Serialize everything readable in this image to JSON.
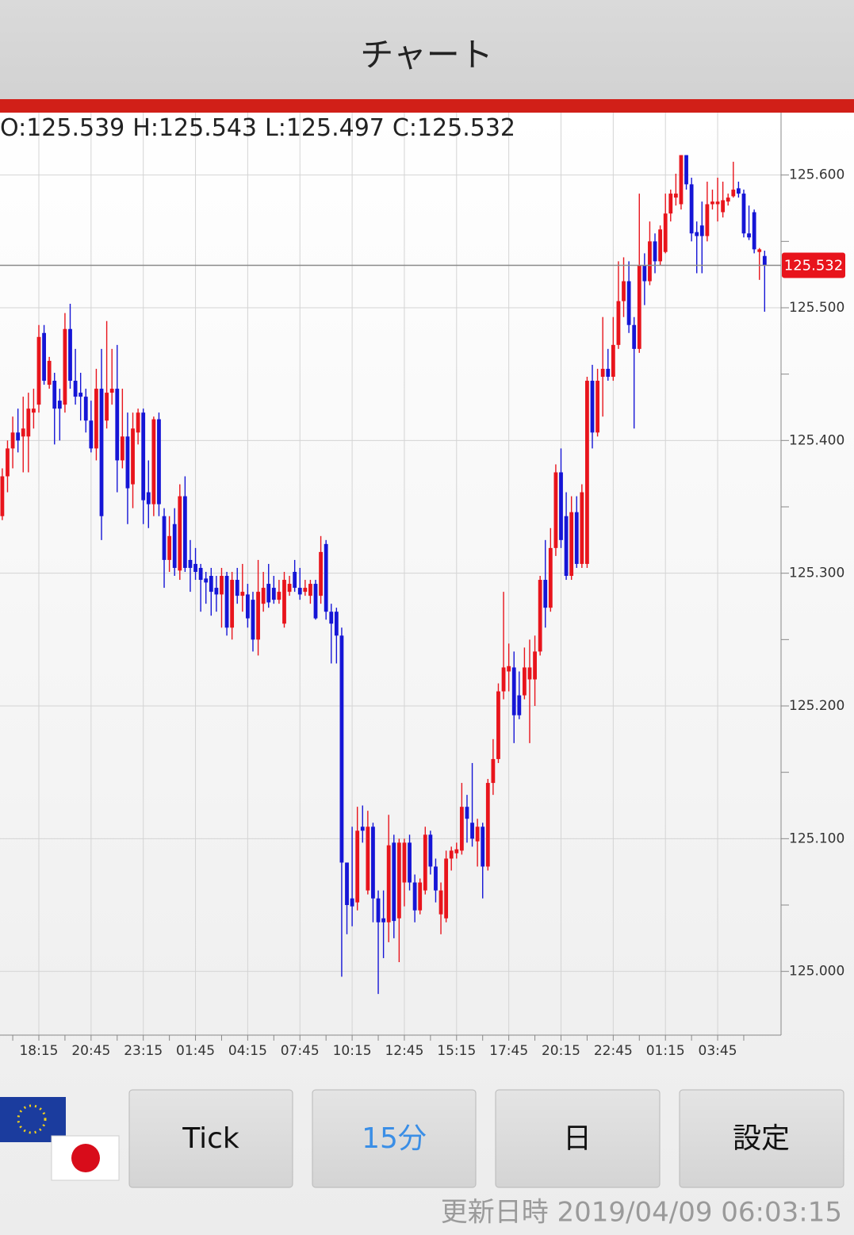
{
  "header": {
    "title": "チャート"
  },
  "chart_data": {
    "type": "candlestick",
    "categories": [
      null,
      null,
      null,
      null,
      null,
      null,
      null,
      "18:15",
      null,
      null,
      null,
      null,
      null,
      null,
      null,
      null,
      null,
      "20:45",
      null,
      null,
      null,
      null,
      null,
      null,
      null,
      null,
      null,
      "23:15",
      null,
      null,
      null,
      null,
      null,
      null,
      null,
      null,
      null,
      "01:45",
      null,
      null,
      null,
      null,
      null,
      null,
      null,
      null,
      null,
      "04:15",
      null,
      null,
      null,
      null,
      null,
      null,
      null,
      null,
      null,
      "07:45",
      null,
      null,
      null,
      null,
      null,
      null,
      null,
      null,
      null,
      "10:15",
      null,
      null,
      null,
      null,
      null,
      null,
      null,
      null,
      null,
      "12:45",
      null,
      null,
      null,
      null,
      null,
      null,
      null,
      null,
      null,
      "15:15",
      null,
      null,
      null,
      null,
      null,
      null,
      null,
      null,
      null,
      "17:45",
      null,
      null,
      null,
      null,
      null,
      null,
      null,
      null,
      null,
      "20:15",
      null,
      null,
      null,
      null,
      null,
      null,
      null,
      null,
      null,
      "22:45",
      null,
      null,
      null,
      null,
      null,
      null,
      null,
      null,
      null,
      "01:15",
      null,
      null,
      null,
      null,
      null,
      null,
      null,
      null,
      null,
      "03:45",
      null,
      null,
      null,
      null,
      null,
      null,
      null,
      null,
      null
    ],
    "open": [
      125.343,
      125.373,
      125.394,
      125.406,
      125.403,
      125.403,
      125.421,
      125.427,
      125.481,
      125.442,
      125.445,
      125.43,
      125.427,
      125.484,
      125.445,
      125.436,
      125.433,
      125.415,
      125.394,
      125.439,
      125.415,
      125.436,
      125.439,
      125.385,
      125.403,
      125.367,
      125.406,
      125.421,
      125.361,
      125.352,
      125.416,
      125.343,
      125.31,
      125.337,
      125.302,
      125.358,
      125.31,
      125.307,
      125.304,
      125.296,
      125.298,
      125.289,
      125.284,
      125.298,
      125.259,
      125.295,
      125.283,
      125.284,
      125.28,
      125.25,
      125.277,
      125.292,
      125.289,
      125.28,
      125.262,
      125.286,
      125.301,
      125.289,
      125.286,
      125.283,
      125.292,
      125.283,
      125.322,
      125.271,
      125.271,
      125.253,
      125.082,
      125.055,
      125.052,
      125.109,
      125.061,
      125.109,
      125.055,
      125.04,
      125.037,
      125.097,
      125.04,
      125.067,
      125.097,
      125.067,
      125.046,
      125.061,
      125.103,
      125.079,
      125.043,
      125.04,
      125.085,
      125.089,
      125.091,
      125.124,
      125.112,
      125.098,
      125.109,
      125.079,
      125.142,
      125.16,
      125.211,
      125.226,
      125.229,
      125.208,
      125.208,
      125.22,
      125.22,
      125.241,
      125.295,
      125.274,
      125.319,
      125.376,
      125.343,
      125.298,
      125.346,
      125.307,
      125.307,
      125.445,
      125.406,
      125.448,
      125.454,
      125.448,
      125.472,
      125.505,
      125.52,
      125.487,
      125.469,
      125.532,
      125.52,
      125.55,
      125.535,
      125.542,
      125.571,
      125.583,
      125.578,
      125.615,
      125.593,
      125.557,
      125.562,
      125.554,
      125.578,
      125.578,
      125.572,
      125.58,
      125.584,
      125.59,
      125.586,
      125.556,
      125.572,
      125.542,
      125.539
    ],
    "high": [
      125.379,
      125.4,
      125.418,
      125.424,
      125.433,
      125.436,
      125.439,
      125.487,
      125.487,
      125.463,
      125.451,
      125.439,
      125.496,
      125.503,
      125.469,
      125.451,
      125.439,
      125.43,
      125.454,
      125.469,
      125.49,
      125.469,
      125.472,
      125.439,
      125.421,
      125.421,
      125.424,
      125.424,
      125.385,
      125.418,
      125.421,
      125.349,
      125.343,
      125.349,
      125.367,
      125.373,
      125.325,
      125.319,
      125.307,
      125.301,
      125.304,
      125.298,
      125.304,
      125.301,
      125.301,
      125.304,
      125.307,
      125.292,
      125.286,
      125.31,
      125.301,
      125.307,
      125.298,
      125.295,
      125.301,
      125.298,
      125.31,
      125.304,
      125.295,
      125.295,
      125.295,
      125.328,
      125.325,
      125.277,
      125.274,
      125.259,
      125.082,
      125.109,
      125.124,
      125.125,
      125.121,
      125.112,
      125.061,
      125.061,
      125.118,
      125.103,
      125.1,
      125.1,
      125.103,
      125.073,
      125.07,
      125.109,
      125.106,
      125.085,
      125.067,
      125.091,
      125.094,
      125.097,
      125.142,
      125.133,
      125.157,
      125.115,
      125.112,
      125.145,
      125.175,
      125.217,
      125.286,
      125.247,
      125.241,
      125.226,
      125.244,
      125.25,
      125.253,
      125.298,
      125.325,
      125.334,
      125.382,
      125.394,
      125.361,
      125.358,
      125.358,
      125.367,
      125.448,
      125.457,
      125.454,
      125.493,
      125.469,
      125.493,
      125.535,
      125.538,
      125.535,
      125.493,
      125.586,
      125.541,
      125.565,
      125.556,
      125.562,
      125.586,
      125.589,
      125.601,
      125.615,
      125.615,
      125.598,
      125.565,
      125.58,
      125.595,
      125.589,
      125.598,
      125.595,
      125.586,
      125.61,
      125.595,
      125.589,
      125.577,
      125.574,
      125.545,
      125.543
    ],
    "low": [
      125.34,
      125.361,
      125.379,
      125.391,
      125.376,
      125.376,
      125.409,
      125.421,
      125.442,
      125.439,
      125.397,
      125.4,
      125.421,
      125.439,
      125.427,
      125.415,
      125.406,
      125.391,
      125.385,
      125.325,
      125.409,
      125.427,
      125.361,
      125.379,
      125.337,
      125.349,
      125.397,
      125.337,
      125.334,
      125.343,
      125.343,
      125.289,
      125.301,
      125.298,
      125.295,
      125.301,
      125.286,
      125.295,
      125.271,
      125.277,
      125.268,
      125.271,
      125.259,
      125.253,
      125.25,
      125.277,
      125.271,
      125.259,
      125.241,
      125.238,
      125.271,
      125.274,
      125.277,
      125.277,
      125.259,
      125.283,
      125.286,
      125.28,
      125.283,
      125.277,
      125.265,
      125.277,
      125.265,
      125.232,
      125.232,
      124.996,
      125.028,
      125.034,
      125.046,
      125.097,
      125.058,
      125.037,
      124.983,
      125.01,
      125.022,
      125.025,
      125.007,
      125.049,
      125.061,
      125.037,
      125.043,
      125.058,
      125.073,
      125.052,
      125.028,
      125.037,
      125.076,
      125.085,
      125.088,
      125.097,
      125.094,
      125.079,
      125.055,
      125.076,
      125.133,
      125.157,
      125.205,
      125.211,
      125.172,
      125.19,
      125.205,
      125.172,
      125.2,
      125.238,
      125.259,
      125.271,
      125.313,
      125.319,
      125.295,
      125.295,
      125.304,
      125.304,
      125.304,
      125.394,
      125.403,
      125.418,
      125.445,
      125.445,
      125.469,
      125.493,
      125.481,
      125.409,
      125.466,
      125.502,
      125.517,
      125.526,
      125.532,
      125.541,
      125.565,
      125.577,
      125.574,
      125.589,
      125.55,
      125.526,
      125.526,
      125.55,
      125.574,
      125.565,
      125.568,
      125.577,
      125.583,
      125.583,
      125.553,
      125.551,
      125.541,
      125.521,
      125.497
    ],
    "close": [
      125.373,
      125.394,
      125.406,
      125.4,
      125.409,
      125.424,
      125.424,
      125.478,
      125.445,
      125.46,
      125.424,
      125.424,
      125.484,
      125.445,
      125.433,
      125.433,
      125.415,
      125.394,
      125.439,
      125.343,
      125.436,
      125.439,
      125.385,
      125.403,
      125.364,
      125.409,
      125.421,
      125.355,
      125.352,
      125.416,
      125.352,
      125.31,
      125.328,
      125.304,
      125.358,
      125.304,
      125.304,
      125.301,
      125.295,
      125.293,
      125.286,
      125.284,
      125.298,
      125.259,
      125.295,
      125.283,
      125.286,
      125.266,
      125.25,
      125.286,
      125.289,
      125.278,
      125.28,
      125.286,
      125.295,
      125.292,
      125.289,
      125.284,
      125.289,
      125.292,
      125.266,
      125.316,
      125.271,
      125.262,
      125.253,
      125.082,
      125.05,
      125.049,
      125.106,
      125.106,
      125.109,
      125.055,
      125.037,
      125.037,
      125.095,
      125.038,
      125.097,
      125.097,
      125.067,
      125.046,
      125.067,
      125.103,
      125.079,
      125.061,
      125.061,
      125.085,
      125.091,
      125.092,
      125.124,
      125.115,
      125.1,
      125.109,
      125.079,
      125.142,
      125.16,
      125.211,
      125.229,
      125.23,
      125.193,
      125.193,
      125.229,
      125.229,
      125.241,
      125.295,
      125.274,
      125.319,
      125.376,
      125.325,
      125.298,
      125.346,
      125.307,
      125.361,
      125.445,
      125.406,
      125.445,
      125.454,
      125.448,
      125.472,
      125.505,
      125.52,
      125.487,
      125.469,
      125.532,
      125.52,
      125.55,
      125.535,
      125.559,
      125.571,
      125.586,
      125.586,
      125.615,
      125.593,
      125.556,
      125.554,
      125.554,
      125.578,
      125.58,
      125.58,
      125.581,
      125.583,
      125.589,
      125.586,
      125.556,
      125.553,
      125.544,
      125.544,
      125.532
    ],
    "up_color": "#e8141c",
    "down_color": "#1515d6",
    "ylim": [
      124.952,
      125.647
    ],
    "yticks": [
      {
        "value": 125.0,
        "label": "125.000"
      },
      {
        "value": 125.1,
        "label": "125.100"
      },
      {
        "value": 125.2,
        "label": "125.200"
      },
      {
        "value": 125.3,
        "label": "125.300"
      },
      {
        "value": 125.4,
        "label": "125.400"
      },
      {
        "value": 125.5,
        "label": "125.500"
      },
      {
        "value": 125.6,
        "label": "125.600"
      }
    ],
    "minor_yticks": [
      125.05,
      125.15,
      125.25,
      125.35,
      125.45,
      125.55
    ],
    "grid": true,
    "ohlc_prefixes": [
      "O:",
      "H:",
      "L:",
      "C:"
    ]
  },
  "buttons": [
    "Tick",
    "15分",
    "日",
    "設定"
  ],
  "footer": {
    "updated": "更新日時 2019/04/09 06:03:15"
  }
}
